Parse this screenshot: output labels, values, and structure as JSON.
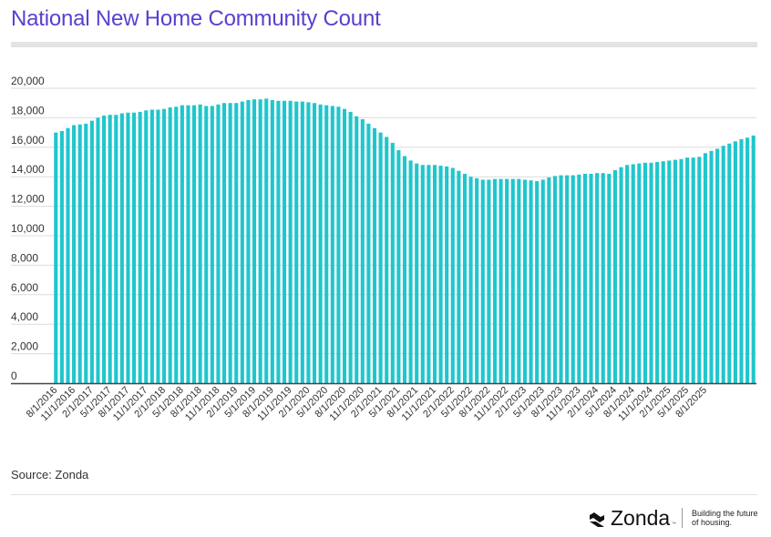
{
  "header": {
    "title": "National New Home Community Count"
  },
  "footer": {
    "source": "Source: Zonda"
  },
  "brand": {
    "name": "Zonda",
    "trademark": "™",
    "tagline": "Building the future of housing.",
    "logo_icon": "zonda-z-mark-icon",
    "color": "#111111"
  },
  "colors": {
    "title": "#5b3fd0",
    "bar": "#1fc6cd",
    "grid": "#dcdcdc",
    "axis": "#333333"
  },
  "chart_data": {
    "type": "bar",
    "title": "National New Home Community Count",
    "xlabel": "",
    "ylabel": "",
    "ylim": [
      0,
      20000
    ],
    "y_ticks": [
      "0",
      "2,000",
      "4,000",
      "6,000",
      "8,000",
      "10,000",
      "12,000",
      "14,000",
      "16,000",
      "18,000",
      "20,000"
    ],
    "grid": true,
    "legend": "none",
    "x_tick_labels": [
      "8/1/2016",
      "11/1/2016",
      "2/1/2017",
      "5/1/2017",
      "8/1/2017",
      "11/1/2017",
      "2/1/2018",
      "5/1/2018",
      "8/1/2018",
      "11/1/2018",
      "2/1/2019",
      "5/1/2019",
      "8/1/2019",
      "11/1/2019",
      "2/1/2020",
      "5/1/2020",
      "8/1/2020",
      "11/1/2020",
      "2/1/2021",
      "5/1/2021",
      "8/1/2021",
      "11/1/2021",
      "2/1/2022",
      "5/1/2022",
      "8/1/2022",
      "11/1/2022",
      "2/1/2023",
      "5/1/2023",
      "8/1/2023",
      "11/1/2023",
      "2/1/2024",
      "5/1/2024",
      "8/1/2024",
      "11/1/2024",
      "2/1/2025",
      "5/1/2025",
      "8/1/2025"
    ],
    "tick_every": 3,
    "series": [
      {
        "values": [
          17000,
          17100,
          17300,
          17500,
          17550,
          17600,
          17800,
          18000,
          18150,
          18200,
          18200,
          18300,
          18350,
          18350,
          18400,
          18500,
          18550,
          18550,
          18600,
          18700,
          18750,
          18850,
          18850,
          18850,
          18900,
          18800,
          18800,
          18900,
          19000,
          19000,
          19000,
          19100,
          19200,
          19250,
          19250,
          19300,
          19200,
          19150,
          19150,
          19150,
          19100,
          19100,
          19050,
          19000,
          18900,
          18850,
          18800,
          18750,
          18600,
          18400,
          18100,
          17900,
          17600,
          17300,
          17000,
          16700,
          16300,
          15800,
          15400,
          15100,
          14900,
          14800,
          14800,
          14800,
          14750,
          14700,
          14600,
          14400,
          14200,
          14000,
          13900,
          13800,
          13800,
          13850,
          13850,
          13850,
          13850,
          13850,
          13800,
          13750,
          13700,
          13800,
          13950,
          14050,
          14100,
          14100,
          14100,
          14150,
          14200,
          14200,
          14250,
          14250,
          14200,
          14450,
          14650,
          14800,
          14850,
          14900,
          14950,
          14950,
          15000,
          15050,
          15100,
          15150,
          15200,
          15300,
          15300,
          15350,
          15600,
          15750,
          15900,
          16100,
          16250,
          16400,
          16550,
          16650,
          16800
        ]
      }
    ]
  }
}
